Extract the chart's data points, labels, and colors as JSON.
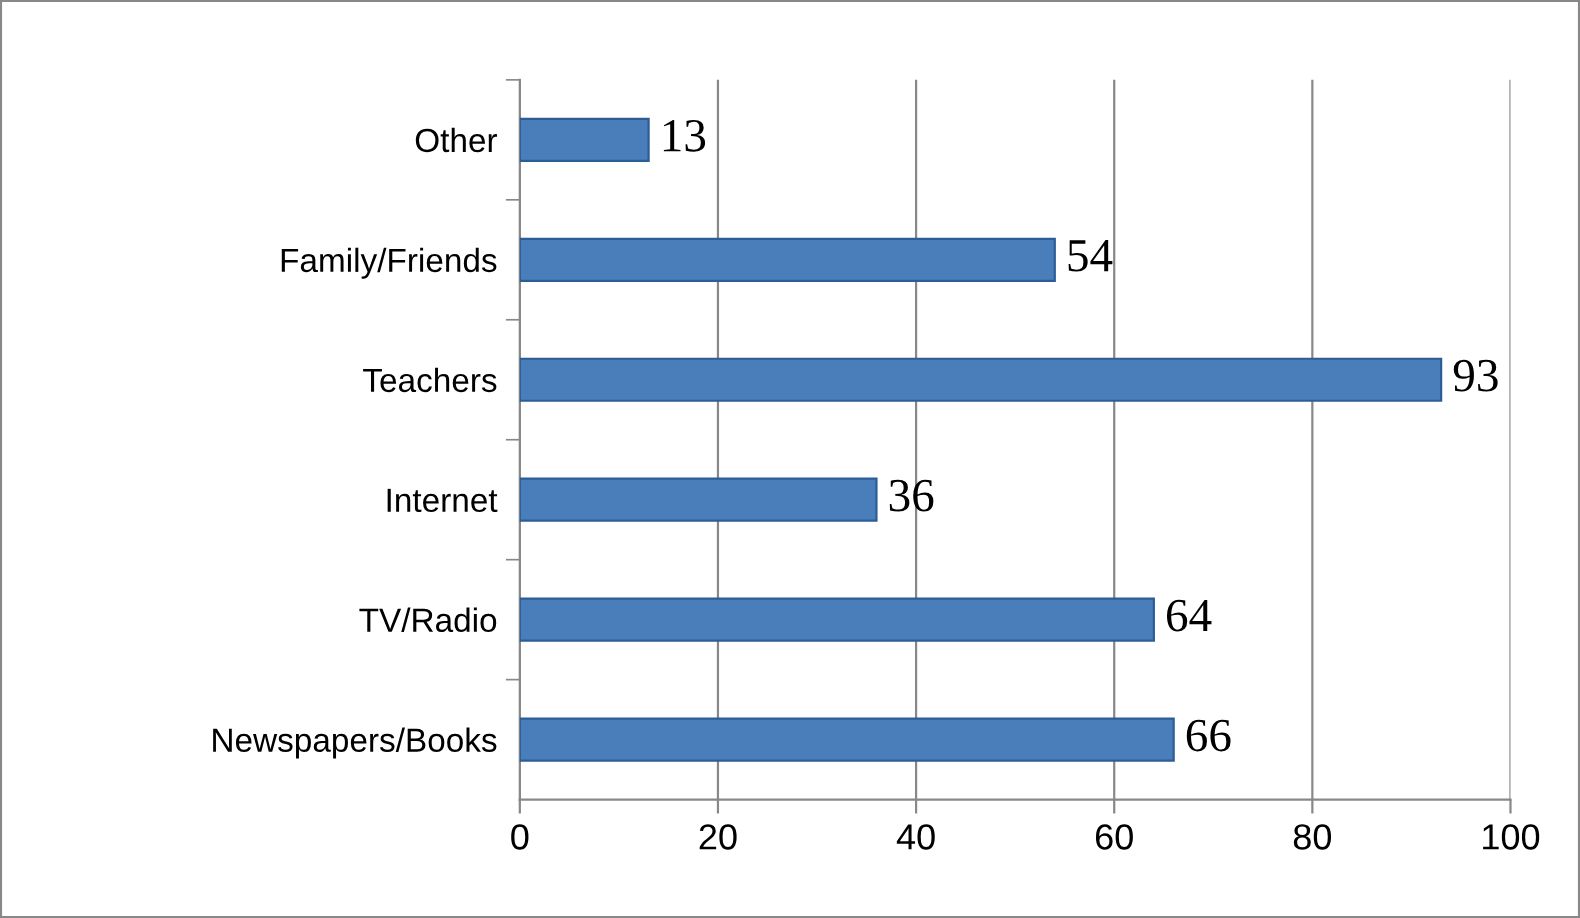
{
  "chart_data": {
    "type": "bar",
    "orientation": "horizontal",
    "categories": [
      "Other",
      "Family/Friends",
      "Teachers",
      "Internet",
      "TV/Radio",
      "Newspapers/Books"
    ],
    "values": [
      13,
      54,
      93,
      36,
      64,
      66
    ],
    "color": "#4a7ebb",
    "xlim": [
      0,
      100
    ],
    "xticks": [
      0,
      20,
      40,
      60,
      80,
      100
    ],
    "grid": "x",
    "data_labels": true
  }
}
